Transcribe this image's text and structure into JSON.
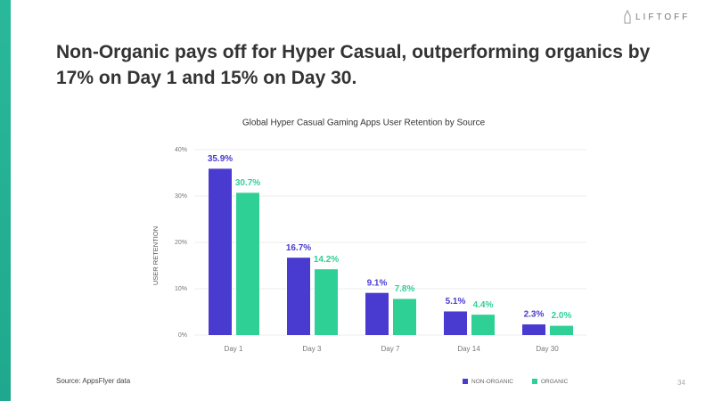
{
  "brand": "LIFTOFF",
  "headline": "Non-Organic pays off for Hyper Casual, outperforming organics by 17% on Day 1 and 15% on Day 30.",
  "source": "Source: AppsFlyer data",
  "page_number": "34",
  "chart_data": {
    "type": "bar",
    "title": "Global Hyper Casual Gaming Apps User Retention by Source",
    "y_label": "USER RETENTION",
    "categories": [
      "Day 1",
      "Day 3",
      "Day 7",
      "Day 14",
      "Day 30"
    ],
    "series": [
      {
        "name": "NON-ORGANIC",
        "color": "#4a3bd0",
        "values": [
          35.9,
          16.7,
          9.1,
          5.1,
          2.3
        ],
        "value_labels": [
          "35.9%",
          "16.7%",
          "9.1%",
          "5.1%",
          "2.3%"
        ]
      },
      {
        "name": "ORGANIC",
        "color": "#2fd096",
        "values": [
          30.7,
          14.2,
          7.8,
          4.4,
          2.0
        ],
        "value_labels": [
          "30.7%",
          "14.2%",
          "7.8%",
          "4.4%",
          "2.0%"
        ]
      }
    ],
    "ylim": [
      0,
      40
    ],
    "yticks": [
      {
        "value": 0,
        "label": "0%"
      },
      {
        "value": 10,
        "label": "10%"
      },
      {
        "value": 20,
        "label": "20%"
      },
      {
        "value": 30,
        "label": "30%"
      },
      {
        "value": 40,
        "label": "40%"
      }
    ],
    "grid": true
  }
}
